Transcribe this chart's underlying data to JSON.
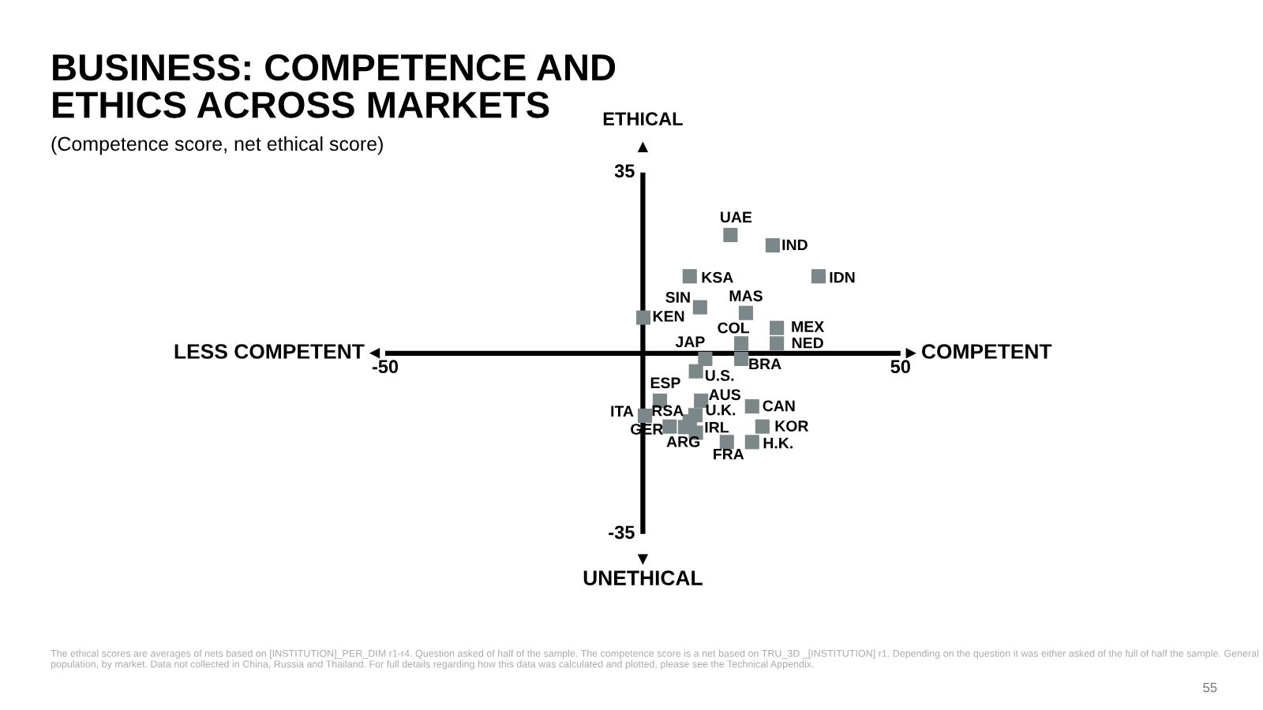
{
  "chart_data": {
    "type": "scatter",
    "title": "BUSINESS: COMPETENCE AND\nETHICS ACROSS MARKETS",
    "subtitle": "(Competence score, net ethical score)",
    "xlabel": "COMPETENT",
    "ylabel": "ETHICAL",
    "xlim": [
      -50,
      50
    ],
    "xticks": [
      -50,
      50
    ],
    "ylim": [
      -35,
      35
    ],
    "yticks": [
      35,
      -35
    ],
    "marker": "square",
    "grid": false,
    "legend": false,
    "x": [
      17.0,
      25.2,
      34.1,
      9.1,
      11.1,
      20.0,
      0.1,
      19.1,
      26.0,
      26.0,
      12.1,
      19.1,
      10.3,
      3.3,
      11.3,
      21.2,
      0.4,
      10.2,
      9.1,
      8.2,
      5.2,
      10.3,
      23.2,
      21.2,
      16.3
    ],
    "series": [
      {
        "color": "#7b8788",
        "values": [
          22.9,
          20.9,
          14.9,
          14.9,
          8.9,
          7.8,
          6.9,
          1.9,
          4.9,
          1.9,
          -1.1,
          -1.1,
          -3.5,
          -9.2,
          -9.2,
          -10.3,
          -12.1,
          -12.0,
          -13.2,
          -14.3,
          -14.2,
          -15.4,
          -14.2,
          -17.2,
          -17.2
        ]
      }
    ],
    "annotations": [
      {
        "text": "UAE",
        "x": 17.0,
        "y": 22.9
      },
      {
        "text": "IND",
        "x": 25.2,
        "y": 20.9
      },
      {
        "text": "IDN",
        "x": 34.1,
        "y": 14.9
      },
      {
        "text": "KSA",
        "x": 9.1,
        "y": 14.9
      },
      {
        "text": "SIN",
        "x": 11.1,
        "y": 8.9
      },
      {
        "text": "MAS",
        "x": 20.0,
        "y": 7.8
      },
      {
        "text": "KEN",
        "x": 0.1,
        "y": 6.9
      },
      {
        "text": "COL",
        "x": 19.1,
        "y": 1.9
      },
      {
        "text": "MEX",
        "x": 26.0,
        "y": 4.9
      },
      {
        "text": "NED",
        "x": 26.0,
        "y": 1.9
      },
      {
        "text": "JAP",
        "x": 12.1,
        "y": -1.1
      },
      {
        "text": "BRA",
        "x": 19.1,
        "y": -1.1
      },
      {
        "text": "U.S.",
        "x": 10.3,
        "y": -3.5
      },
      {
        "text": "ESP",
        "x": 3.3,
        "y": -9.2
      },
      {
        "text": "AUS",
        "x": 11.3,
        "y": -9.2
      },
      {
        "text": "CAN",
        "x": 21.2,
        "y": -10.3
      },
      {
        "text": "ITA",
        "x": 0.4,
        "y": -12.1
      },
      {
        "text": "U.K.",
        "x": 10.2,
        "y": -12.0
      },
      {
        "text": "RSA",
        "x": 9.1,
        "y": -13.2
      },
      {
        "text": "IRL",
        "x": 8.2,
        "y": -14.3
      },
      {
        "text": "GER",
        "x": 5.2,
        "y": -14.2
      },
      {
        "text": "ARG",
        "x": 10.3,
        "y": -15.4
      },
      {
        "text": "KOR",
        "x": 23.2,
        "y": -14.2
      },
      {
        "text": "H.K.",
        "x": 21.2,
        "y": -17.2
      },
      {
        "text": "FRA",
        "x": 16.3,
        "y": -17.2
      },
      "LESS COMPETENT",
      "UNETHICAL",
      "The ethical scores are averages of nets based on [INSTITUTION]_PER_DIM r1-r4. Question asked of half of the sample. The competence score is a net based on TRU_3D _[INSTITUTION] r1. Depending on the question it was either asked of the full of half the sample. General population, by market. Data not collected in China, Russia and Thailand. For full details regarding how this data was calculated and plotted, please see the Technical Appendix.",
      "55"
    ]
  }
}
